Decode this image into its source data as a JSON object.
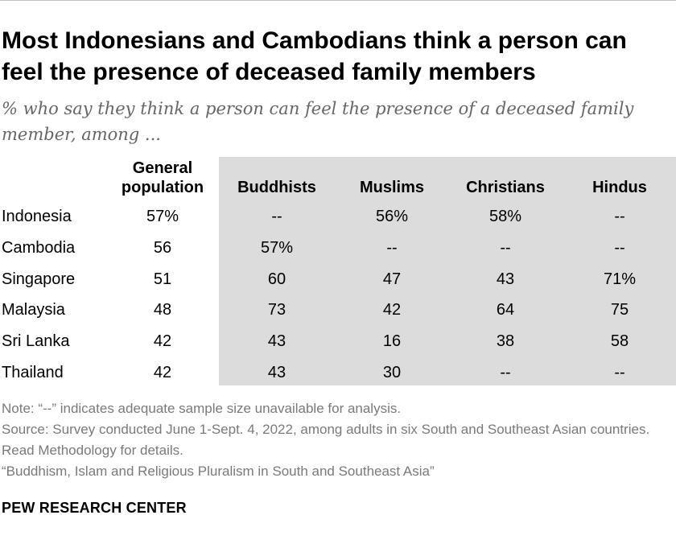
{
  "title": "Most Indonesians and Cambodians think a person can feel the presence of deceased family members",
  "subtitle": "% who say they think a person can feel the presence of a deceased family member, among ...",
  "chart_data": {
    "type": "table",
    "columns": [
      "General population",
      "Buddhists",
      "Muslims",
      "Christians",
      "Hindus"
    ],
    "column_header_lines": [
      [
        "General",
        "population"
      ],
      [
        "Buddhists"
      ],
      [
        "Muslims"
      ],
      [
        "Christians"
      ],
      [
        "Hindus"
      ]
    ],
    "rows": [
      {
        "label": "Indonesia",
        "values": [
          "57%",
          "--",
          "56%",
          "58%",
          "--"
        ]
      },
      {
        "label": "Cambodia",
        "values": [
          "56",
          "57%",
          "--",
          "--",
          "--"
        ]
      },
      {
        "label": "Singapore",
        "values": [
          "51",
          "60",
          "47",
          "43",
          "71%"
        ]
      },
      {
        "label": "Malaysia",
        "values": [
          "48",
          "73",
          "42",
          "64",
          "75"
        ]
      },
      {
        "label": "Sri Lanka",
        "values": [
          "42",
          "43",
          "16",
          "38",
          "58"
        ]
      },
      {
        "label": "Thailand",
        "values": [
          "42",
          "43",
          "30",
          "--",
          "--"
        ]
      }
    ]
  },
  "notes": {
    "note": "Note: “--” indicates adequate sample size unavailable for analysis.",
    "source": "Source: Survey conducted June 1-Sept. 4, 2022, among adults in six South and Southeast Asian countries. Read Methodology for details.",
    "report": "“Buddhism, Islam and Religious Pluralism in South and Southeast Asia”"
  },
  "brand": "PEW RESEARCH CENTER"
}
